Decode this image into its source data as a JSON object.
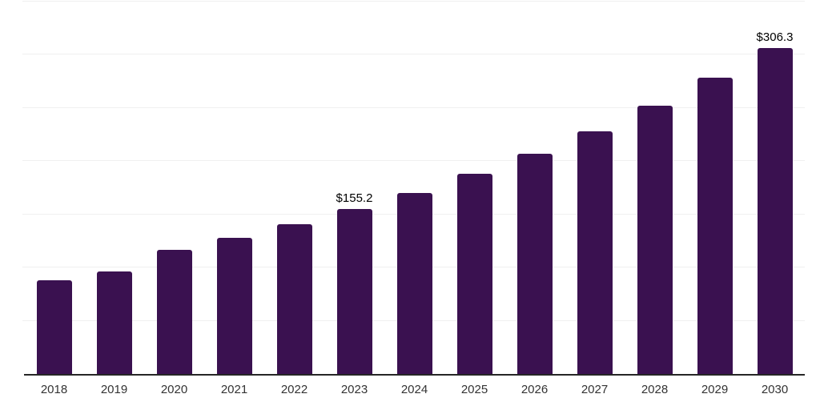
{
  "chart_data": {
    "type": "bar",
    "title": "",
    "xlabel": "",
    "ylabel": "",
    "categories": [
      "2018",
      "2019",
      "2020",
      "2021",
      "2022",
      "2023",
      "2024",
      "2025",
      "2026",
      "2027",
      "2028",
      "2029",
      "2030"
    ],
    "values": [
      88.0,
      96.5,
      116.8,
      128.0,
      140.9,
      155.2,
      170.0,
      188.0,
      207.3,
      228.0,
      252.5,
      278.5,
      306.3
    ],
    "data_labels": {
      "2023": "$155.2",
      "2030": "$306.3"
    },
    "ylim": [
      0,
      350
    ],
    "gridline_step": 50,
    "grid": "horizontal-only",
    "y_tick_labels_visible": false,
    "legend_position": "none",
    "colors": {
      "bar": "#3A1150",
      "axis_line": "#262626",
      "gridline": "#F0F0F0",
      "tick_label": "#333333",
      "data_label": "#000000",
      "background": "#FFFFFF"
    }
  }
}
